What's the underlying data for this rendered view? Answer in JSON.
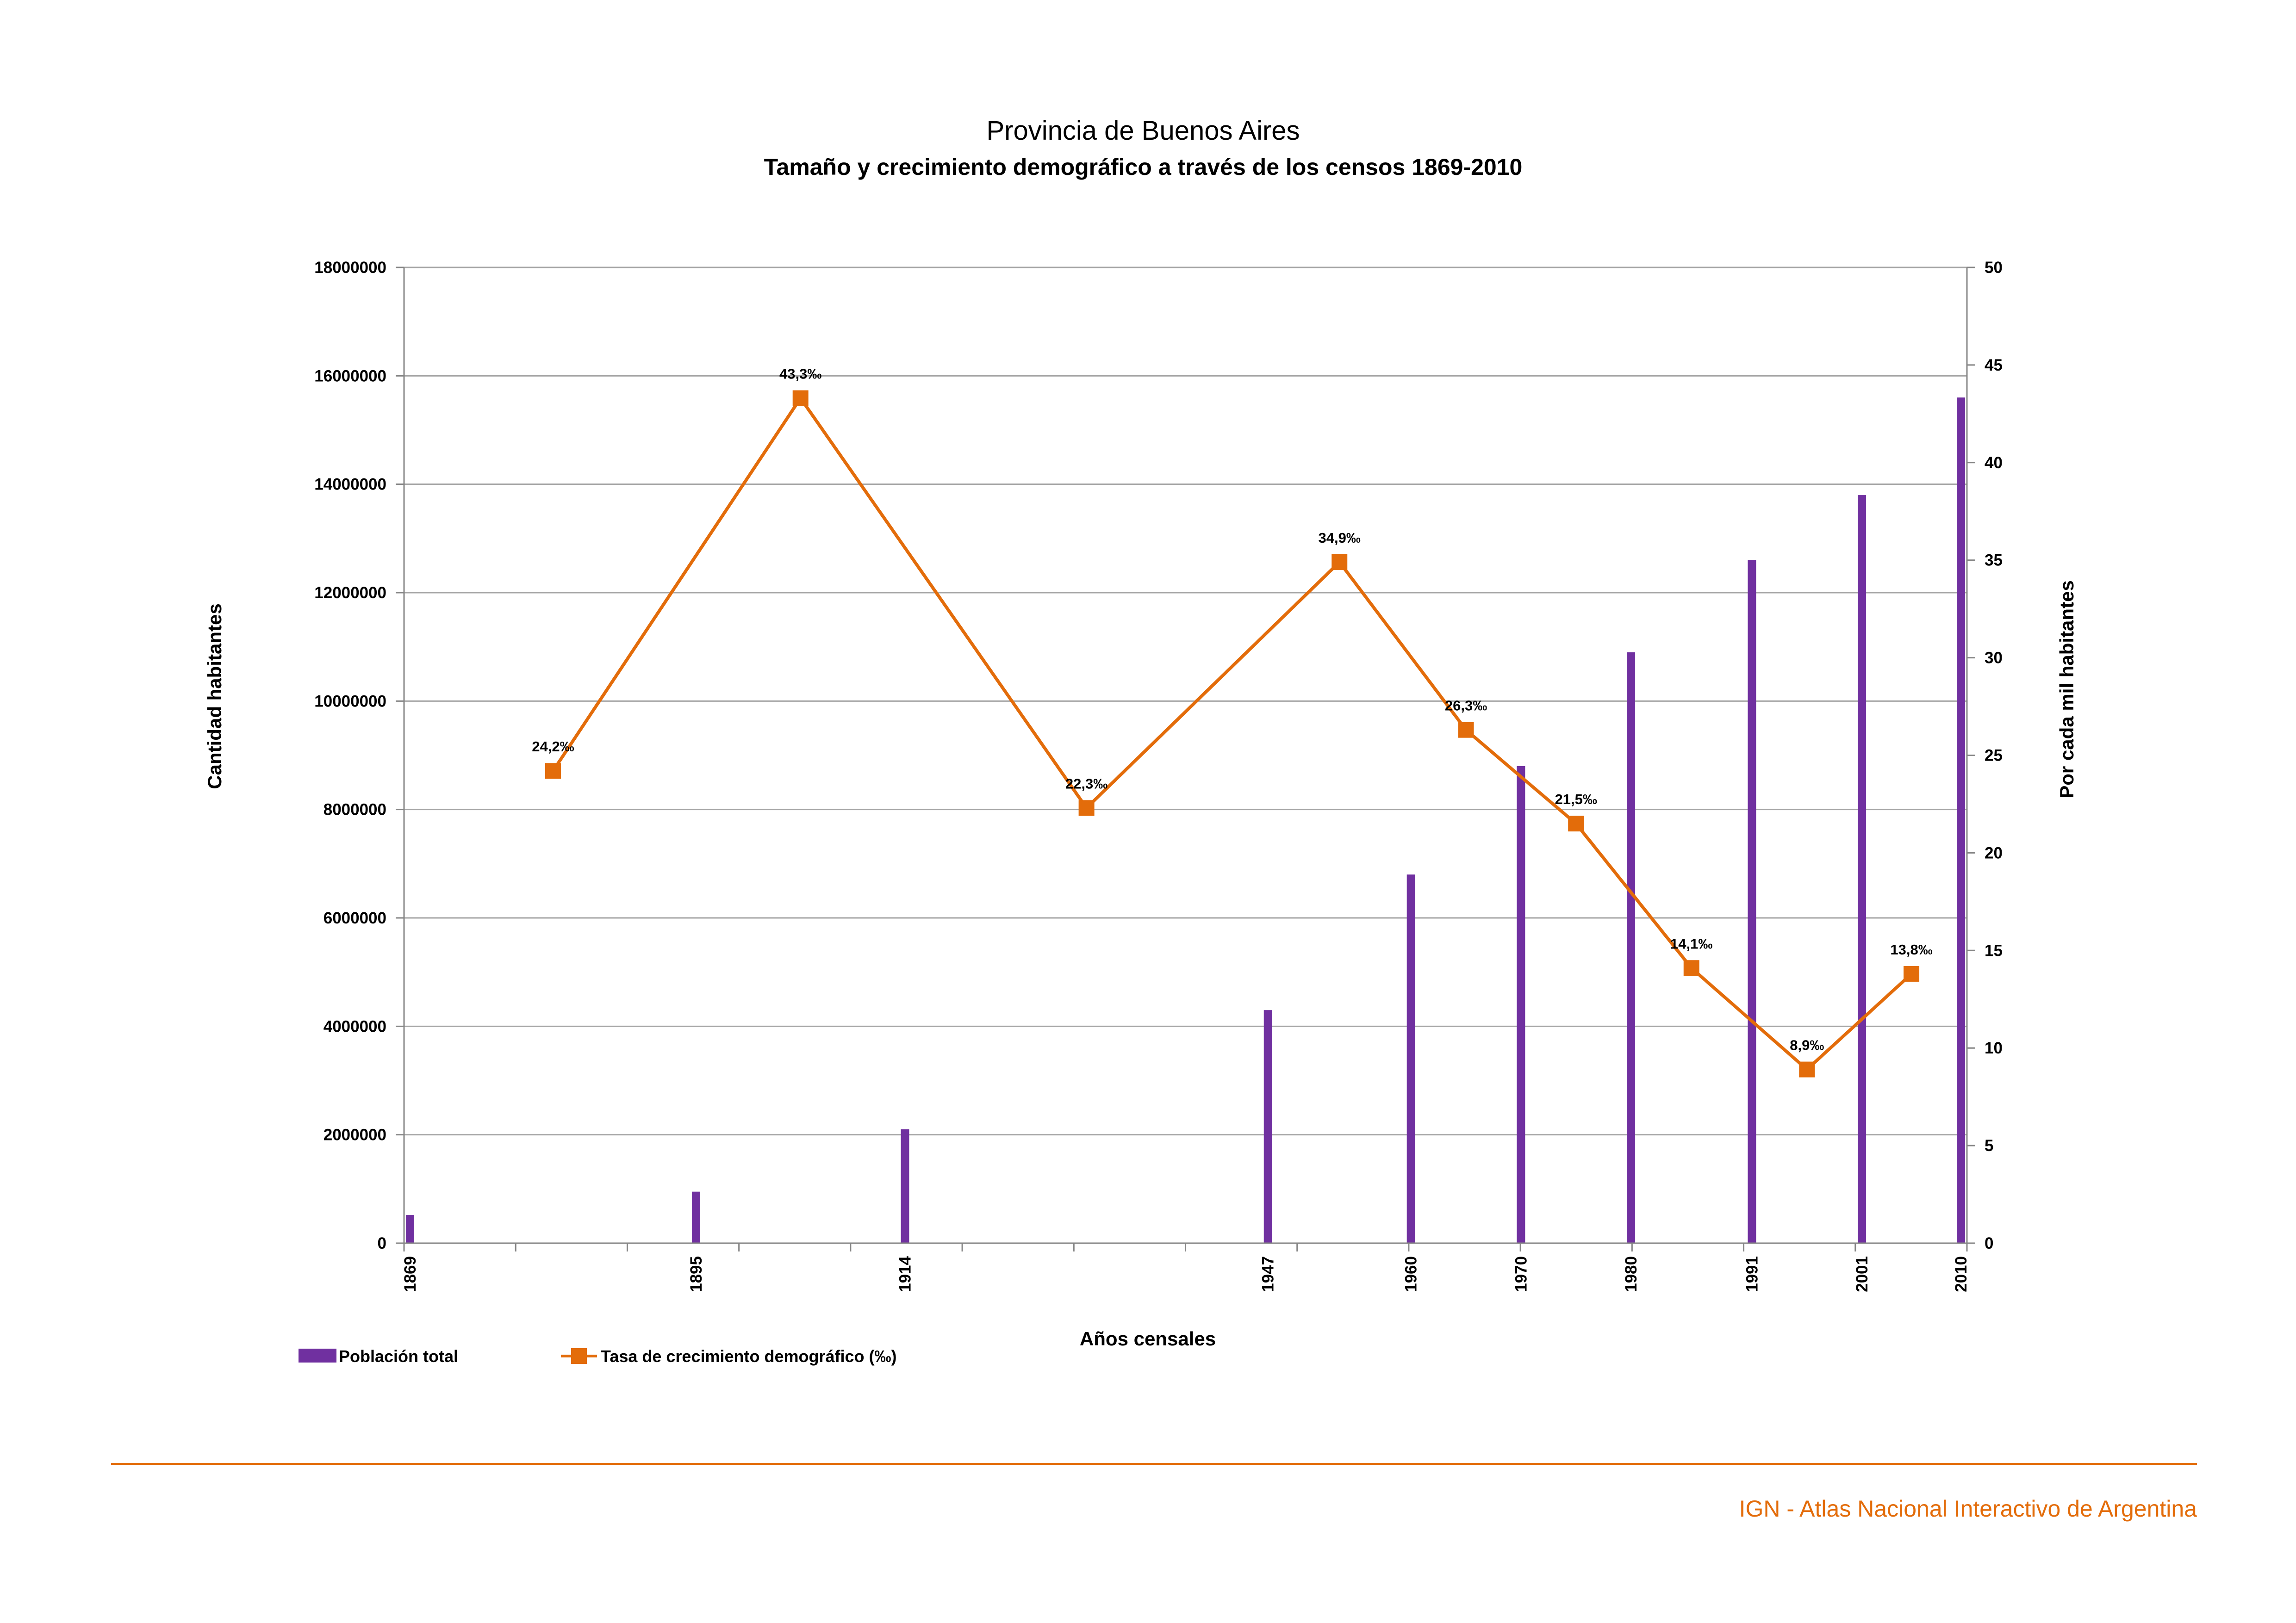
{
  "colors": {
    "bar": "#7030a0",
    "line": "#e36c0a",
    "grid": "#a6a6a6",
    "axis": "#868686",
    "footer": "#e36c0a"
  },
  "footer": {
    "text": "IGN - Atlas Nacional Interactivo de Argentina"
  },
  "chart_data": {
    "type": "bar+line",
    "title": "Provincia de Buenos Aires",
    "subtitle": "Tamaño y crecimiento demográfico a través de los censos 1869-2010",
    "xlabel": "Años censales",
    "ylabel_left": "Cantidad habitantes",
    "ylabel_right": "Por cada mil habitantes",
    "ylim_left": [
      0,
      18000000
    ],
    "ylim_right": [
      0,
      50
    ],
    "yticks_left": [
      "0",
      "2000000",
      "4000000",
      "6000000",
      "8000000",
      "10000000",
      "12000000",
      "14000000",
      "16000000",
      "18000000"
    ],
    "yticks_right": [
      "0",
      "5",
      "10",
      "15",
      "20",
      "25",
      "30",
      "35",
      "40",
      "45",
      "50"
    ],
    "xlim": [
      1869,
      2010
    ],
    "grid": true,
    "legend_position": "bottom-left",
    "series": [
      {
        "name": "Población total",
        "type": "bar",
        "x": [
          "1869",
          "1895",
          "1914",
          "1947",
          "1960",
          "1970",
          "1980",
          "1991",
          "2001",
          "2010"
        ],
        "values": [
          520000,
          950000,
          2100000,
          4300000,
          6800000,
          8800000,
          10900000,
          12600000,
          13800000,
          15600000
        ]
      },
      {
        "name": "Tasa de crecimiento demográfico (‰)",
        "type": "line",
        "x": [
          1882,
          1904.5,
          1930.5,
          1953.5,
          1965,
          1975,
          1985.5,
          1996,
          2005.5
        ],
        "values": [
          24.2,
          43.3,
          22.3,
          34.9,
          26.3,
          21.5,
          14.1,
          8.9,
          13.8
        ],
        "labels": [
          "24,2‰",
          "43,3‰",
          "22,3‰",
          "34,9‰",
          "26,3‰",
          "21,5‰",
          "14,1‰",
          "8,9‰",
          "13,8‰"
        ]
      }
    ]
  }
}
